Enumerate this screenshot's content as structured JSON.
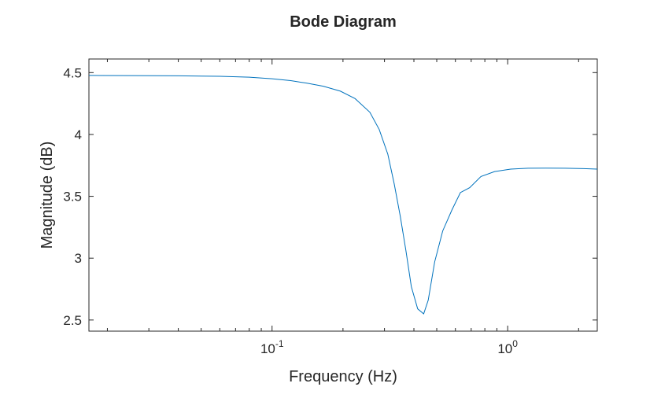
{
  "chart_data": {
    "type": "line",
    "title": "Bode Diagram",
    "xlabel": "Frequency (Hz)",
    "ylabel": "Magnitude (dB)",
    "xscale": "log",
    "xlim": [
      0.0167,
      2.4
    ],
    "ylim": [
      2.41,
      4.61
    ],
    "grid": false,
    "line_color": "#0072BD",
    "axis_color": "#262626",
    "x_ticks": [
      {
        "value": 0.1,
        "base": "10",
        "exp": "-1"
      },
      {
        "value": 1,
        "base": "10",
        "exp": "0"
      }
    ],
    "y_ticks": [
      {
        "value": 2.5,
        "label": "2.5"
      },
      {
        "value": 3,
        "label": "3"
      },
      {
        "value": 3.5,
        "label": "3.5"
      },
      {
        "value": 4,
        "label": "4"
      },
      {
        "value": 4.5,
        "label": "4.5"
      }
    ],
    "series": [
      {
        "x": [
          0.0167,
          0.025,
          0.04,
          0.06,
          0.08,
          0.1,
          0.12,
          0.14,
          0.165,
          0.195,
          0.225,
          0.26,
          0.285,
          0.31,
          0.33,
          0.35,
          0.37,
          0.39,
          0.415,
          0.44,
          0.46,
          0.49,
          0.53,
          0.58,
          0.63,
          0.69,
          0.77,
          0.88,
          1.03,
          1.22,
          1.45,
          1.75,
          2.1,
          2.4
        ],
        "y": [
          4.477,
          4.476,
          4.474,
          4.47,
          4.463,
          4.45,
          4.435,
          4.415,
          4.39,
          4.35,
          4.29,
          4.18,
          4.04,
          3.84,
          3.6,
          3.34,
          3.06,
          2.77,
          2.59,
          2.55,
          2.66,
          2.97,
          3.22,
          3.39,
          3.53,
          3.57,
          3.66,
          3.7,
          3.72,
          3.727,
          3.728,
          3.727,
          3.724,
          3.72
        ]
      }
    ]
  }
}
